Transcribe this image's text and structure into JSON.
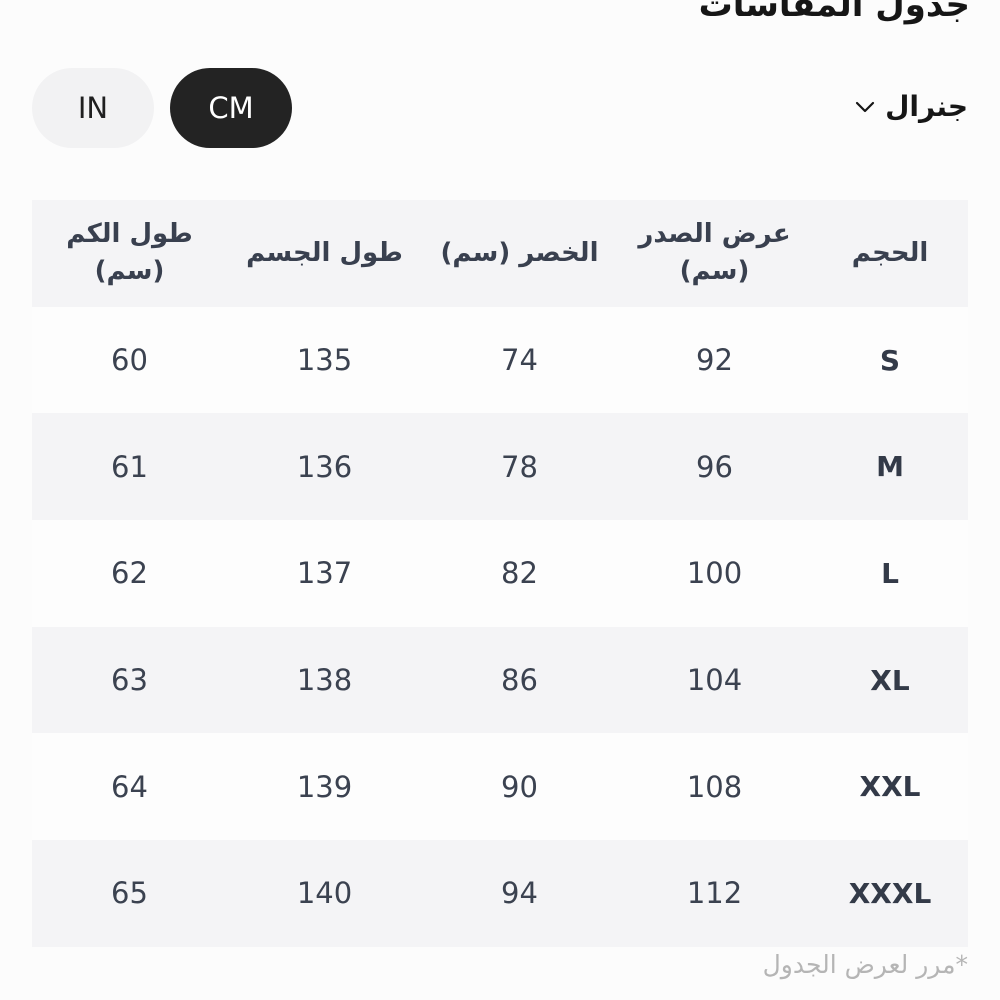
{
  "page": {
    "title": "جدول المقاسات",
    "footnote": "*مرر لعرض الجدول"
  },
  "unit_toggle": {
    "options": [
      {
        "label": "IN",
        "selected": false
      },
      {
        "label": "CM",
        "selected": true
      }
    ]
  },
  "category_dropdown": {
    "label": "جنرال",
    "icon": "chevron-down"
  },
  "table": {
    "direction": "rtl",
    "columns": [
      "الحجم",
      "عرض الصدر\n(سم)",
      "الخصر (سم)",
      "طول الجسم",
      "طول الكم\n(سم)"
    ],
    "rows": [
      {
        "size": "S",
        "chest_cm": "92",
        "waist_cm": "74",
        "body_length_cm": "135",
        "sleeve_length_cm": "60"
      },
      {
        "size": "M",
        "chest_cm": "96",
        "waist_cm": "78",
        "body_length_cm": "136",
        "sleeve_length_cm": "61"
      },
      {
        "size": "L",
        "chest_cm": "100",
        "waist_cm": "82",
        "body_length_cm": "137",
        "sleeve_length_cm": "62"
      },
      {
        "size": "XL",
        "chest_cm": "104",
        "waist_cm": "86",
        "body_length_cm": "138",
        "sleeve_length_cm": "63"
      },
      {
        "size": "XXL",
        "chest_cm": "108",
        "waist_cm": "90",
        "body_length_cm": "139",
        "sleeve_length_cm": "64"
      },
      {
        "size": "XXXL",
        "chest_cm": "112",
        "waist_cm": "94",
        "body_length_cm": "140",
        "sleeve_length_cm": "65"
      }
    ]
  },
  "colors": {
    "page_background": "#fcfcfc",
    "selected_pill": "#232323",
    "unselected_pill": "#f2f2f3",
    "table_stripe": "#f4f4f6",
    "table_text": "#3b4250",
    "footnote_text": "#b5b5b5"
  }
}
